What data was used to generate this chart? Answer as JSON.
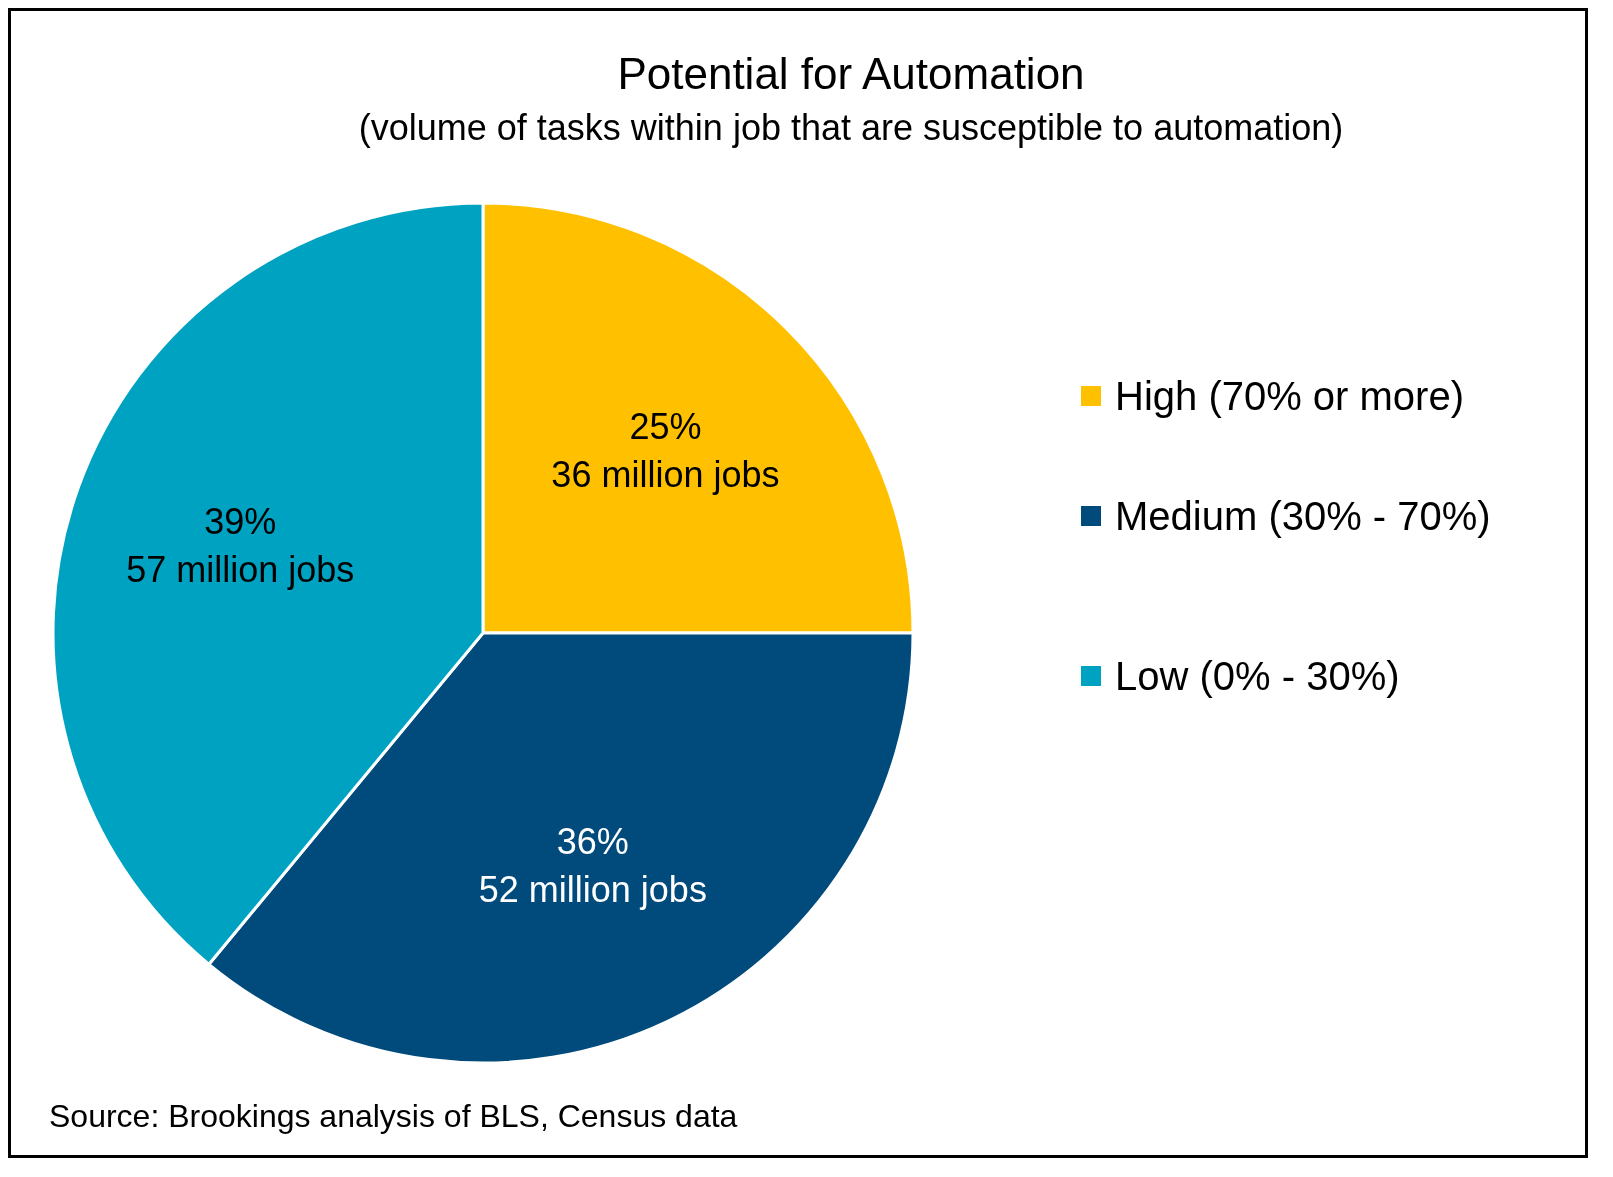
{
  "chart_data": {
    "type": "pie",
    "title": "Potential for Automation",
    "subtitle": "(volume of tasks within job that are susceptible to automation)",
    "categories": [
      "High (70% or more)",
      "Medium (30% - 70%)",
      "Low (0% - 30%)"
    ],
    "values": [
      25,
      36,
      39
    ],
    "colors": [
      "#ffc000",
      "#004a7c",
      "#00a2c2"
    ],
    "value_labels": [
      "25%\n36 million jobs",
      "36%\n52 million jobs",
      "39%\n57 million jobs"
    ],
    "legend": "right",
    "annotations": [
      "Source: Brookings analysis of BLS, Census data"
    ]
  }
}
